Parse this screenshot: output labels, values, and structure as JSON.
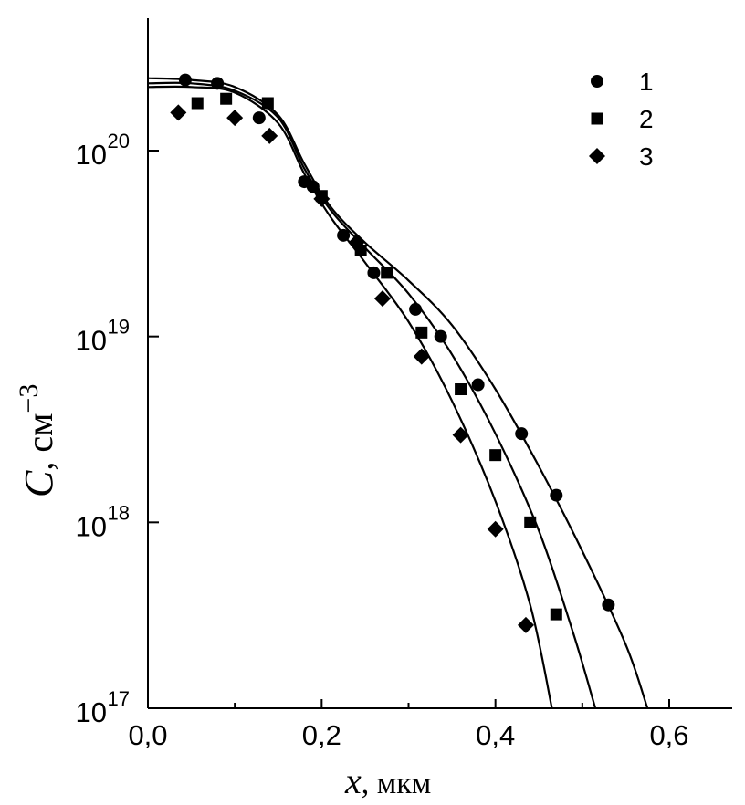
{
  "chart_data": {
    "type": "scatter",
    "xlabel": {
      "var": "x",
      "unit": ", мкм"
    },
    "ylabel": {
      "var": "C",
      "unit": ", см",
      "exp": "−3"
    },
    "xscale": "linear",
    "yscale": "log",
    "xlim": [
      0.0,
      0.67
    ],
    "ylim": [
      1e+17,
      4.2e+20
    ],
    "x_ticks": [
      0.0,
      0.2,
      0.4,
      0.6
    ],
    "x_tick_labels": [
      "0,0",
      "0,2",
      "0,4",
      "0,6"
    ],
    "y_ticks": [
      1e+17,
      1e+18,
      1e+19,
      1e+20
    ],
    "y_tick_labels": [
      {
        "base": "10",
        "exp": "17"
      },
      {
        "base": "10",
        "exp": "18"
      },
      {
        "base": "10",
        "exp": "19"
      },
      {
        "base": "10",
        "exp": "20"
      }
    ],
    "grid": false,
    "legend_position": "top-right",
    "series": [
      {
        "name": "1",
        "marker": "circle",
        "points": [
          [
            0.043,
            2.4e+20
          ],
          [
            0.08,
            2.3e+20
          ],
          [
            0.128,
            1.5e+20
          ],
          [
            0.18,
            6.8e+19
          ],
          [
            0.19,
            6.4e+19
          ],
          [
            0.225,
            3.5e+19
          ],
          [
            0.26,
            2.2e+19
          ],
          [
            0.308,
            1.4e+19
          ],
          [
            0.337,
            1e+19
          ],
          [
            0.38,
            5.5e+18
          ],
          [
            0.43,
            3e+18
          ],
          [
            0.47,
            1.4e+18
          ],
          [
            0.53,
            3.6e+17
          ]
        ],
        "curve": [
          [
            0.0,
            2.45e+20
          ],
          [
            0.05,
            2.4e+20
          ],
          [
            0.1,
            2.2e+20
          ],
          [
            0.15,
            1.55e+20
          ],
          [
            0.18,
            8.5e+19
          ],
          [
            0.21,
            5e+19
          ],
          [
            0.25,
            3.2e+19
          ],
          [
            0.3,
            2e+19
          ],
          [
            0.35,
            1.15e+19
          ],
          [
            0.4,
            5.2e+18
          ],
          [
            0.45,
            2e+18
          ],
          [
            0.5,
            7e+17
          ],
          [
            0.55,
            2.2e+17
          ],
          [
            0.575,
            1e+17
          ]
        ]
      },
      {
        "name": "2",
        "marker": "square",
        "points": [
          [
            0.057,
            1.8e+20
          ],
          [
            0.09,
            1.9e+20
          ],
          [
            0.138,
            1.8e+20
          ],
          [
            0.2,
            5.7e+19
          ],
          [
            0.245,
            2.9e+19
          ],
          [
            0.275,
            2.2e+19
          ],
          [
            0.315,
            1.05e+19
          ],
          [
            0.36,
            5.2e+18
          ],
          [
            0.4,
            2.3e+18
          ],
          [
            0.44,
            1e+18
          ],
          [
            0.47,
            3.2e+17
          ]
        ],
        "curve": [
          [
            0.0,
            2.3e+20
          ],
          [
            0.05,
            2.3e+20
          ],
          [
            0.1,
            2.1e+20
          ],
          [
            0.15,
            1.5e+20
          ],
          [
            0.18,
            8e+19
          ],
          [
            0.21,
            4.8e+19
          ],
          [
            0.25,
            3e+19
          ],
          [
            0.3,
            1.7e+19
          ],
          [
            0.35,
            8e+18
          ],
          [
            0.4,
            3e+18
          ],
          [
            0.45,
            9e+17
          ],
          [
            0.49,
            2.5e+17
          ],
          [
            0.515,
            1e+17
          ]
        ]
      },
      {
        "name": "3",
        "marker": "diamond",
        "points": [
          [
            0.035,
            1.6e+20
          ],
          [
            0.1,
            1.5e+20
          ],
          [
            0.14,
            1.2e+20
          ],
          [
            0.2,
            5.5e+19
          ],
          [
            0.24,
            3.2e+19
          ],
          [
            0.27,
            1.6e+19
          ],
          [
            0.315,
            7.8e+18
          ],
          [
            0.36,
            2.95e+18
          ],
          [
            0.4,
            9.2e+17
          ],
          [
            0.435,
            2.8e+17
          ]
        ],
        "curve": [
          [
            0.0,
            2.2e+20
          ],
          [
            0.05,
            2.2e+20
          ],
          [
            0.1,
            2.05e+20
          ],
          [
            0.15,
            1.4e+20
          ],
          [
            0.18,
            7.5e+19
          ],
          [
            0.21,
            4.4e+19
          ],
          [
            0.25,
            2.5e+19
          ],
          [
            0.3,
            1.2e+19
          ],
          [
            0.35,
            4.5e+18
          ],
          [
            0.4,
            1.3e+18
          ],
          [
            0.44,
            3.6e+17
          ],
          [
            0.465,
            1e+17
          ]
        ]
      }
    ],
    "colors": {
      "ink": "#000000",
      "background": "#ffffff"
    }
  }
}
